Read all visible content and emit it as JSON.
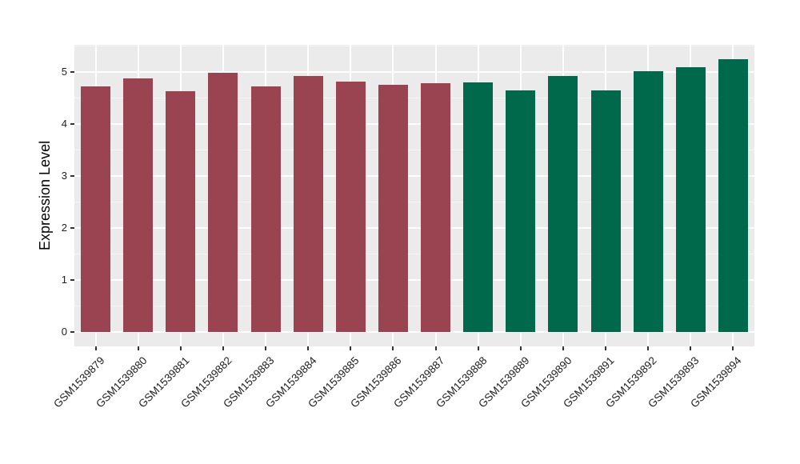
{
  "figure": {
    "background": "#FFFFFF",
    "panel_background": "#EBEBEB",
    "grid_major_color": "#FFFFFF",
    "grid_minor_color": "#F5F5F5",
    "tick_color": "#333333",
    "axis_text_color": "#1F1F1F"
  },
  "chart_data": {
    "type": "bar",
    "title": "",
    "xlabel": "",
    "ylabel": "Expression Level",
    "ylim": [
      0,
      5.52
    ],
    "yticks": [
      0,
      1,
      2,
      3,
      4,
      5
    ],
    "minor_step": 0.5,
    "grid": true,
    "legend": false,
    "categories": [
      "GSM1539879",
      "GSM1539880",
      "GSM1539881",
      "GSM1539882",
      "GSM1539883",
      "GSM1539884",
      "GSM1539885",
      "GSM1539886",
      "GSM1539887",
      "GSM1539888",
      "GSM1539889",
      "GSM1539890",
      "GSM1539891",
      "GSM1539892",
      "GSM1539893",
      "GSM1539894"
    ],
    "values": [
      4.72,
      4.88,
      4.63,
      4.98,
      4.73,
      4.92,
      4.82,
      4.75,
      4.79,
      4.8,
      4.65,
      4.93,
      4.64,
      5.01,
      5.09,
      5.25
    ],
    "bar_colors": [
      "#9A4452",
      "#9A4452",
      "#9A4452",
      "#9A4452",
      "#9A4452",
      "#9A4452",
      "#9A4452",
      "#9A4452",
      "#9A4452",
      "#00694B",
      "#00694B",
      "#00694B",
      "#00694B",
      "#00694B",
      "#00694B",
      "#00694B"
    ],
    "group_colors": {
      "left_group": "#9A4452",
      "right_group": "#00694B"
    }
  }
}
